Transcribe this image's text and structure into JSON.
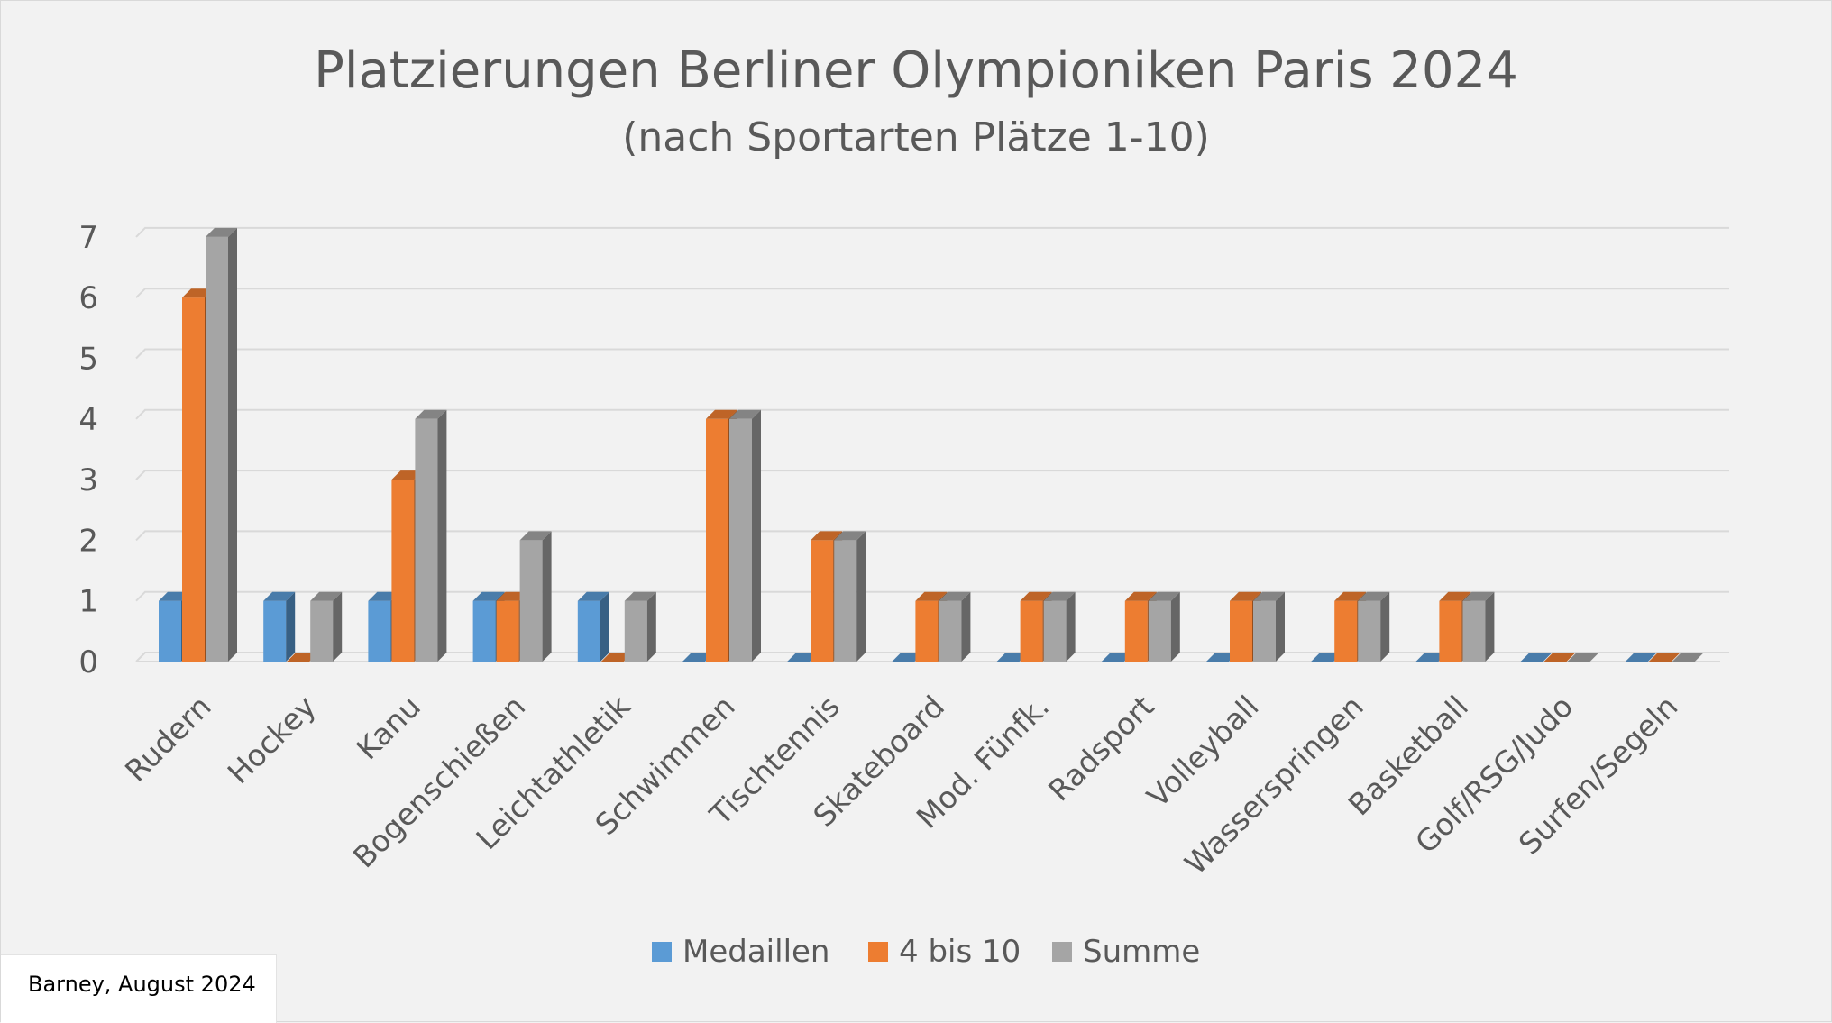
{
  "chart_data": {
    "type": "bar",
    "title": "Platzierungen Berliner Olympioniken Paris 2024",
    "subtitle": "(nach Sportarten Plätze 1-10)",
    "categories": [
      "Rudern",
      "Hockey",
      "Kanu",
      "Bogenschießen",
      "Leichtathletik",
      "Schwimmen",
      "Tischtennis",
      "Skateboard",
      "Mod. Fünfk.",
      "Radsport",
      "Volleyball",
      "Wasserspringen",
      "Basketball",
      "Golf/RSG/Judo",
      "Surfen/Segeln"
    ],
    "series": [
      {
        "name": "Medaillen",
        "values": [
          1,
          1,
          1,
          1,
          1,
          0,
          0,
          0,
          0,
          0,
          0,
          0,
          0,
          0,
          0
        ]
      },
      {
        "name": "4 bis 10",
        "values": [
          6,
          0,
          3,
          1,
          0,
          4,
          2,
          1,
          1,
          1,
          1,
          1,
          1,
          0,
          0
        ]
      },
      {
        "name": "Summe",
        "values": [
          7,
          1,
          4,
          2,
          1,
          4,
          2,
          1,
          1,
          1,
          1,
          1,
          1,
          0,
          0
        ]
      }
    ],
    "yticks": [
      "0",
      "1",
      "2",
      "3",
      "4",
      "5",
      "6",
      "7"
    ],
    "ylim": [
      0,
      7
    ],
    "grid": true,
    "legend_position": "bottom",
    "colors": {
      "Medaillen": "#5b9bd5",
      "4 bis 10": "#ed7d31",
      "Summe": "#a5a5a5"
    }
  },
  "credit": "Barney, August 2024"
}
